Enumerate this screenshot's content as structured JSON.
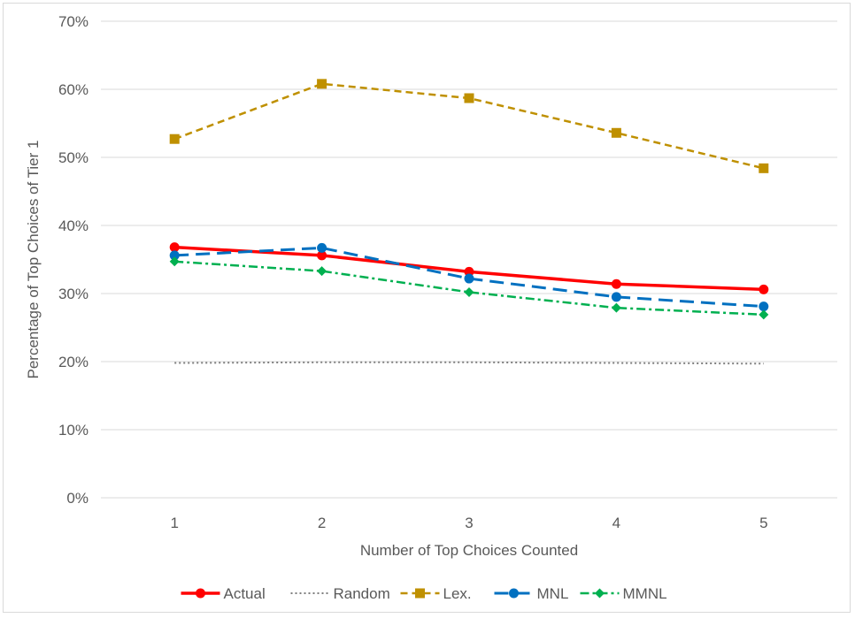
{
  "chart_data": {
    "type": "line",
    "title": "",
    "xlabel": "Number of Top Choices Counted",
    "ylabel": "Percentage of Top Choices of Tier 1",
    "x": [
      1,
      2,
      3,
      4,
      5
    ],
    "x_tick_labels": [
      "1",
      "2",
      "3",
      "4",
      "5"
    ],
    "y_tick_labels": [
      "0%",
      "10%",
      "20%",
      "30%",
      "40%",
      "50%",
      "60%",
      "70%"
    ],
    "ylim": [
      0,
      0.7
    ],
    "y_ticks": [
      0,
      0.1,
      0.2,
      0.3,
      0.4,
      0.5,
      0.6,
      0.7
    ],
    "grid": "horizontal",
    "legend_position": "bottom",
    "series": [
      {
        "name": "Actual",
        "values": [
          0.368,
          0.356,
          0.332,
          0.314,
          0.306
        ],
        "color": "#ff0000",
        "marker": "circle",
        "line_style": "solid"
      },
      {
        "name": "Random",
        "values": [
          0.198,
          0.199,
          0.199,
          0.198,
          0.197
        ],
        "color": "#7f7f7f",
        "marker": "none",
        "line_style": "dotted"
      },
      {
        "name": "Lex.",
        "values": [
          0.527,
          0.608,
          0.587,
          0.536,
          0.484
        ],
        "color": "#bf9000",
        "marker": "square",
        "line_style": "dashed"
      },
      {
        "name": "MNL",
        "values": [
          0.356,
          0.367,
          0.322,
          0.295,
          0.281
        ],
        "color": "#0070c0",
        "marker": "circle",
        "line_style": "longdash"
      },
      {
        "name": "MMNL",
        "values": [
          0.347,
          0.333,
          0.302,
          0.279,
          0.269
        ],
        "color": "#00b050",
        "marker": "diamond",
        "line_style": "dashdot"
      }
    ]
  }
}
